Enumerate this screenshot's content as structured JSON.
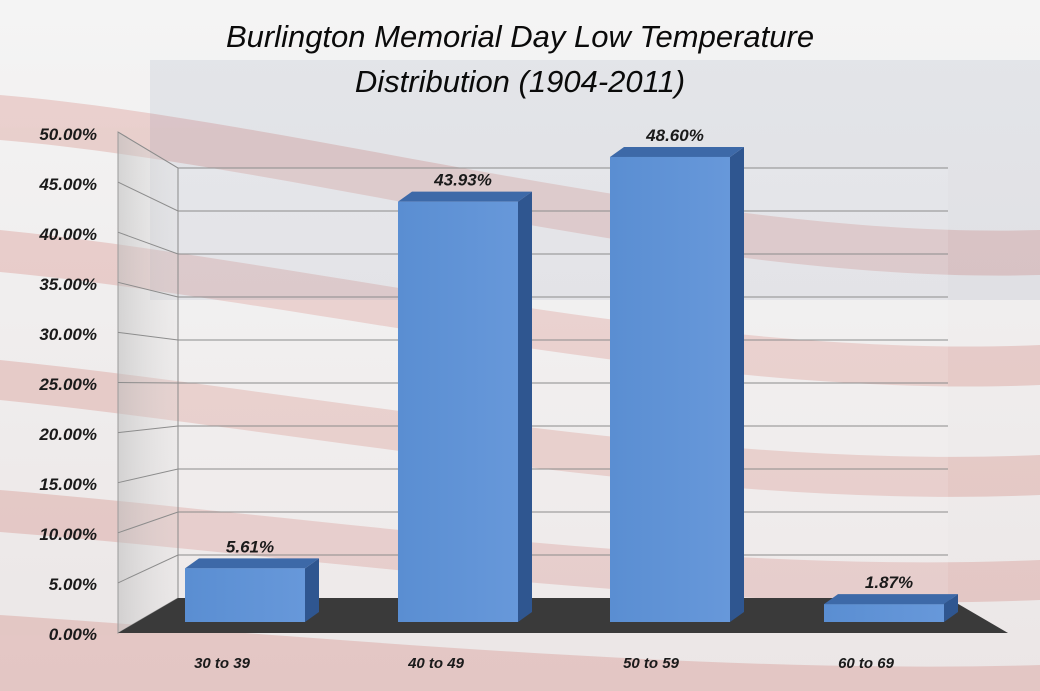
{
  "chart_data": {
    "type": "bar",
    "title": "Burlington Memorial Day Low Temperature",
    "subtitle": "Distribution (1904-2011)",
    "categories": [
      "30 to 39",
      "40 to 49",
      "50 to 59",
      "60 to 69"
    ],
    "values": [
      5.61,
      43.93,
      48.6,
      1.87
    ],
    "data_labels": [
      "5.61%",
      "43.93%",
      "48.60%",
      "1.87%"
    ],
    "xlabel": "",
    "ylabel": "",
    "ylim": [
      0,
      50
    ],
    "y_ticks": [
      "0.00%",
      "5.00%",
      "10.00%",
      "15.00%",
      "20.00%",
      "25.00%",
      "30.00%",
      "35.00%",
      "40.00%",
      "45.00%",
      "50.00%"
    ],
    "grid": true,
    "legend": "none",
    "style": "3d-column",
    "colors": {
      "bar_front": "#5b8fd4",
      "bar_top": "#3d69a8",
      "bar_side": "#2f5690",
      "floor": "#3a3a3a"
    }
  }
}
